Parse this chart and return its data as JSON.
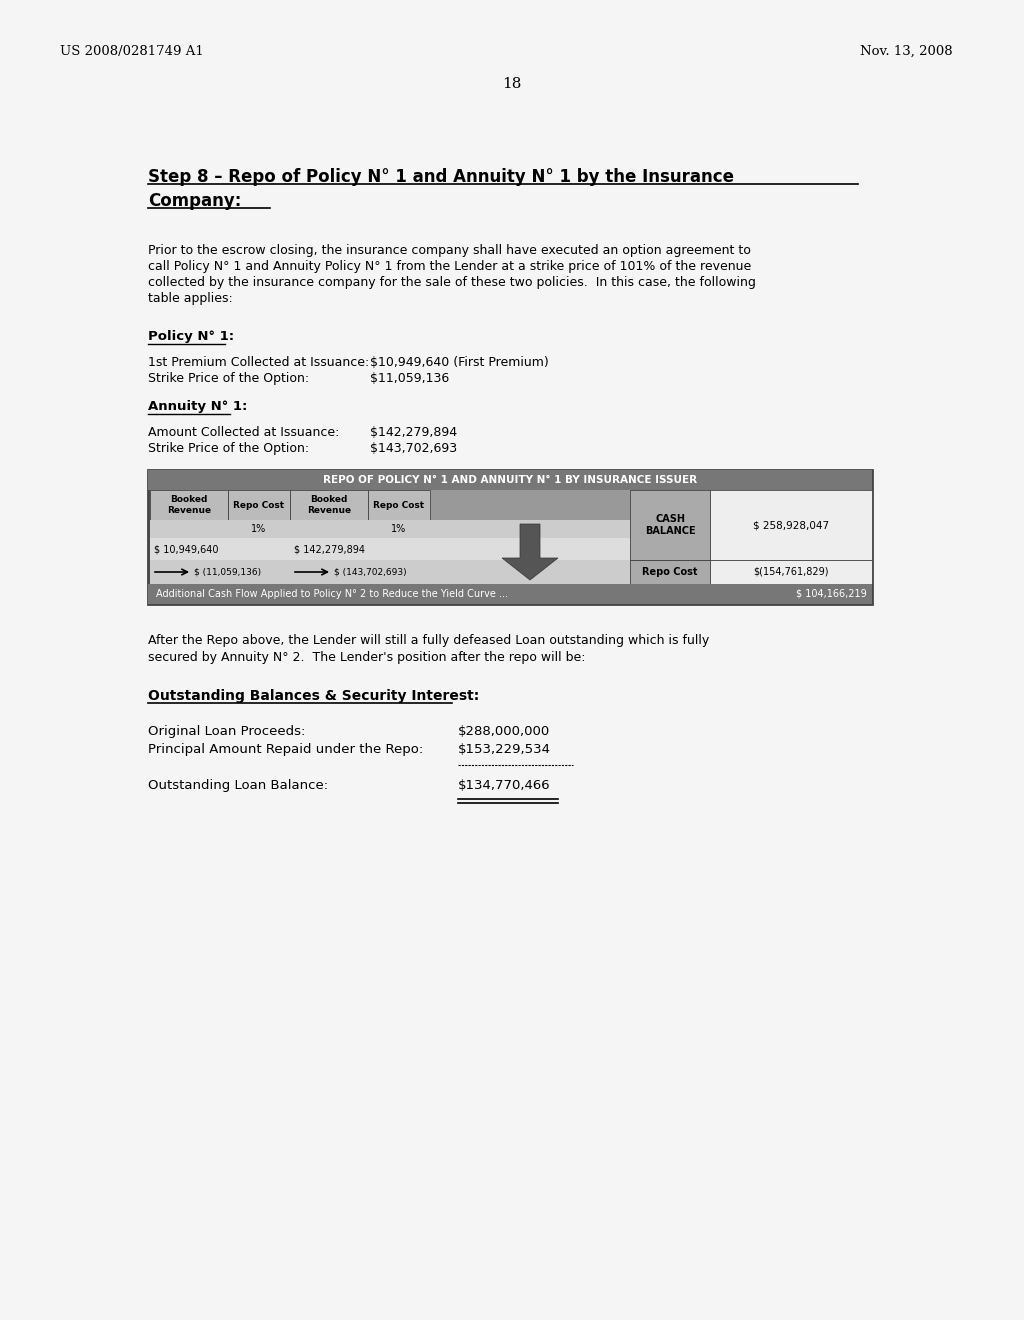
{
  "bg_color": "#f5f5f5",
  "header_left": "US 2008/0281749 A1",
  "header_right": "Nov. 13, 2008",
  "page_number": "18",
  "title_line1": "Step 8 – Repo of Policy N° 1 and Annuity N° 1 by the Insurance",
  "title_line2": "Company:",
  "body_text1_lines": [
    "Prior to the escrow closing, the insurance company shall have executed an option agreement to",
    "call Policy N° 1 and Annuity Policy N° 1 from the Lender at a strike price of 101% of the revenue",
    "collected by the insurance company for the sale of these two policies.  In this case, the following",
    "table applies:"
  ],
  "policy_label": "Policy N° 1:",
  "policy_line1_label": "1st Premium Collected at Issuance:",
  "policy_line1_value": "$10,949,640 (First Premium)",
  "policy_line2_label": "Strike Price of the Option:",
  "policy_line2_value": "$11,059,136",
  "annuity_label": "Annuity N° 1:",
  "annuity_line1_label": "Amount Collected at Issuance:",
  "annuity_line1_value": "$142,279,894",
  "annuity_line2_label": "Strike Price of the Option:",
  "annuity_line2_value": "$143,702,693",
  "table_title": "REPO OF POLICY N° 1 AND ANNUITY N° 1 BY INSURANCE ISSUER",
  "table_col1_header": "Booked\nRevenue",
  "table_col2_header": "Repo Cost",
  "table_col3_header": "Booked\nRevenue",
  "table_col4_header": "Repo Cost",
  "table_row1_pct1": "1%",
  "table_row1_pct2": "1%",
  "table_row2_val1": "$ 10,949,640",
  "table_row2_val2": "$ 142,279,894",
  "table_row3_arr1": "$ (11,059,136)",
  "table_row3_arr2": "$ (143,702,693)",
  "table_cash_label": "CASH\nBALANCE",
  "table_cash_value": "$ 258,928,047",
  "table_repo_label": "Repo Cost",
  "table_repo_value": "$(154,761,829)",
  "table_footer": "Additional Cash Flow Applied to Policy N° 2 to Reduce the Yield Curve ...",
  "table_footer_value": "$ 104,166,219",
  "body_text2_lines": [
    "After the Repo above, the Lender will still a fully defeased Loan outstanding which is fully",
    "secured by Annuity N° 2.  The Lender's position after the repo will be:"
  ],
  "outstanding_label": "Outstanding Balances & Security Interest:",
  "orig_loan_label": "Original Loan Proceeds:",
  "orig_loan_value": "$288,000,000",
  "principal_label": "Principal Amount Repaid under the Repo:",
  "principal_value": "$153,229,534",
  "outstanding_loan_label": "Outstanding Loan Balance:",
  "outstanding_loan_value": "$134,770,466"
}
